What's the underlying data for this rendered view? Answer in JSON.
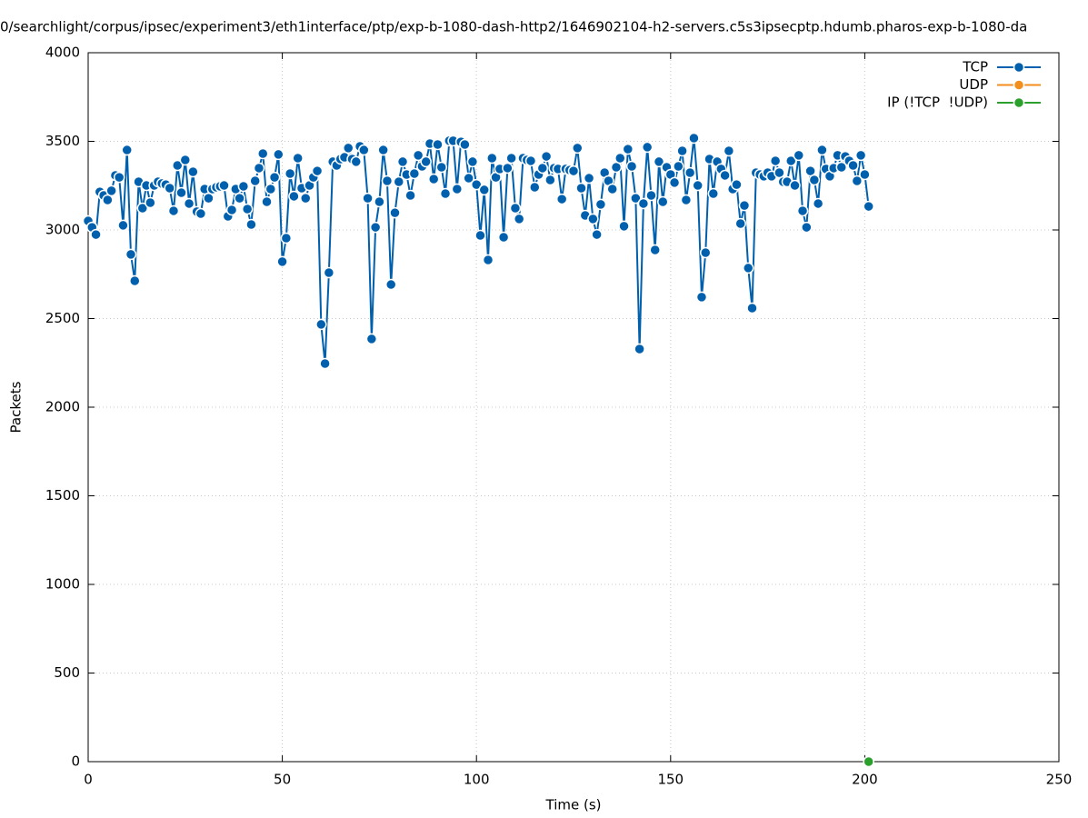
{
  "chart_data": {
    "type": "line",
    "title": "0/searchlight/corpus/ipsec/experiment3/eth1interface/ptp/exp-b-1080-dash-http2/1646902104-h2-servers.c5s3ipsecptp.hdumb.pharos-exp-b-1080-da",
    "x_label": "Time (s)",
    "y_label": "Packets",
    "xlim": [
      0,
      250
    ],
    "xticks": [
      0,
      50,
      100,
      150,
      200,
      250
    ],
    "ylim": [
      0,
      4000
    ],
    "yticks": [
      0,
      500,
      1000,
      1500,
      2000,
      2500,
      3000,
      3500,
      4000
    ],
    "grid": true,
    "legend": "top-right",
    "series": [
      {
        "name": "TCP",
        "color": "#0060ad",
        "x": [
          0,
          1,
          2,
          3,
          4,
          5,
          6,
          7,
          8,
          9,
          10,
          11,
          12,
          13,
          14,
          15,
          16,
          17,
          18,
          19,
          20,
          21,
          22,
          23,
          24,
          25,
          26,
          27,
          28,
          29,
          30,
          31,
          32,
          33,
          34,
          35,
          36,
          37,
          38,
          39,
          40,
          41,
          42,
          43,
          44,
          45,
          46,
          47,
          48,
          49,
          50,
          51,
          52,
          53,
          54,
          55,
          56,
          57,
          58,
          59,
          60,
          61,
          62,
          63,
          64,
          65,
          66,
          67,
          68,
          69,
          70,
          71,
          72,
          73,
          74,
          75,
          76,
          77,
          78,
          79,
          80,
          81,
          82,
          83,
          84,
          85,
          86,
          87,
          88,
          89,
          90,
          91,
          92,
          93,
          94,
          95,
          96,
          97,
          98,
          99,
          100,
          101,
          102,
          103,
          104,
          105,
          106,
          107,
          108,
          109,
          110,
          111,
          112,
          113,
          114,
          115,
          116,
          117,
          118,
          119,
          120,
          121,
          122,
          123,
          124,
          125,
          126,
          127,
          128,
          129,
          130,
          131,
          132,
          133,
          134,
          135,
          136,
          137,
          138,
          139,
          140,
          141,
          142,
          143,
          144,
          145,
          146,
          147,
          148,
          149,
          150,
          151,
          152,
          153,
          154,
          155,
          156,
          157,
          158,
          159,
          160,
          161,
          162,
          163,
          164,
          165,
          166,
          167,
          168,
          169,
          170,
          171,
          172,
          173,
          174,
          175,
          176,
          177,
          178,
          179,
          180,
          181,
          182,
          183,
          184,
          185,
          186,
          187,
          188,
          189,
          190,
          191,
          192,
          193,
          194,
          195,
          196,
          197,
          198,
          199,
          200,
          201
        ],
        "values": [
          3051,
          3015,
          2974,
          3215,
          3195,
          3169,
          3221,
          3308,
          3297,
          3026,
          3451,
          2862,
          2713,
          3272,
          3123,
          3251,
          3154,
          3251,
          3272,
          3262,
          3256,
          3236,
          3108,
          3364,
          3210,
          3395,
          3149,
          3328,
          3103,
          3092,
          3231,
          3179,
          3231,
          3241,
          3246,
          3251,
          3077,
          3113,
          3231,
          3179,
          3246,
          3118,
          3031,
          3277,
          3349,
          3431,
          3159,
          3231,
          3297,
          3426,
          2821,
          2954,
          3318,
          3190,
          3405,
          3236,
          3179,
          3251,
          3297,
          3333,
          2467,
          2246,
          2759,
          3385,
          3364,
          3400,
          3410,
          3462,
          3400,
          3385,
          3472,
          3451,
          3179,
          2385,
          3015,
          3159,
          3451,
          3277,
          2692,
          3097,
          3272,
          3385,
          3313,
          3195,
          3318,
          3421,
          3359,
          3385,
          3487,
          3287,
          3482,
          3354,
          3205,
          3503,
          3503,
          3231,
          3497,
          3482,
          3292,
          3385,
          3256,
          2969,
          3226,
          2831,
          3405,
          3297,
          3344,
          2959,
          3349,
          3405,
          3123,
          3062,
          3405,
          3395,
          3390,
          3241,
          3313,
          3349,
          3415,
          3282,
          3349,
          3344,
          3174,
          3344,
          3338,
          3333,
          3462,
          3236,
          3082,
          3292,
          3062,
          2974,
          3144,
          3323,
          3277,
          3231,
          3354,
          3405,
          3021,
          3456,
          3359,
          3179,
          2328,
          3149,
          3467,
          3195,
          2887,
          3385,
          3159,
          3354,
          3313,
          3267,
          3359,
          3446,
          3169,
          3323,
          3518,
          3251,
          2621,
          2872,
          3400,
          3205,
          3385,
          3344,
          3308,
          3446,
          3231,
          3256,
          3036,
          3138,
          2785,
          2559,
          3323,
          3313,
          3303,
          3323,
          3303,
          3390,
          3323,
          3272,
          3272,
          3390,
          3251,
          3421,
          3108,
          3015,
          3333,
          3282,
          3149,
          3451,
          3344,
          3303,
          3349,
          3421,
          3354,
          3415,
          3390,
          3364,
          3277,
          3421,
          3313,
          3133
        ]
      },
      {
        "name": "UDP",
        "color": "#f28e1c",
        "x": [],
        "values": []
      },
      {
        "name": "IP (!TCP  !UDP)",
        "color": "#2ca02c",
        "x": [
          201
        ],
        "values": [
          0
        ]
      }
    ]
  }
}
